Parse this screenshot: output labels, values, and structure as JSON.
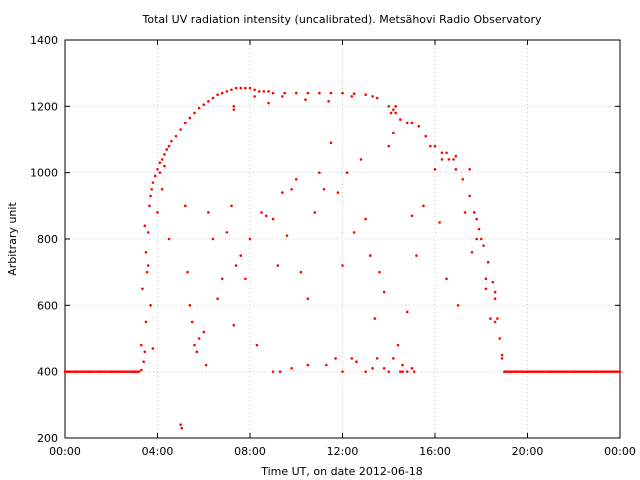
{
  "chart_data": {
    "type": "scatter",
    "title": "Total UV radiation intensity (uncalibrated). Metsähovi Radio Observatory",
    "xlabel": "Time UT, on date 2012-06-18",
    "ylabel": "Arbitrary unit",
    "xlim": [
      "00:00",
      "24:00"
    ],
    "ylim": [
      200,
      1400
    ],
    "x_unit": "hours UT",
    "x_ticks": [
      "00:00",
      "04:00",
      "08:00",
      "12:00",
      "16:00",
      "20:00",
      "00:00"
    ],
    "y_ticks": [
      "200",
      "400",
      "600",
      "800",
      "1000",
      "1200",
      "1400"
    ],
    "grid": true,
    "legend": "none",
    "color": "#ff0000",
    "series": [
      {
        "x": [
          0.0,
          0.5,
          1.0,
          1.5,
          2.0,
          2.5,
          3.0,
          3.2,
          3.3,
          3.4,
          3.45,
          3.5,
          3.55,
          3.6,
          3.65,
          3.7,
          3.75,
          3.8,
          3.9,
          4.0,
          4.1,
          4.2,
          4.3,
          4.4,
          4.5,
          4.6,
          4.8,
          5.0,
          5.2,
          5.4,
          5.6,
          5.8,
          6.0,
          6.2,
          6.4,
          6.6,
          6.8,
          7.0,
          7.2,
          7.4,
          7.6,
          7.8,
          8.0,
          8.2,
          8.4,
          8.6,
          8.8,
          9.0,
          9.5,
          10.0,
          10.5,
          11.0,
          11.5,
          12.0,
          12.5,
          13.0,
          13.5,
          14.0,
          14.3,
          14.5,
          14.8,
          15.0,
          15.3,
          15.6,
          16.0,
          16.3,
          16.6,
          16.9,
          17.2,
          17.5,
          17.7,
          17.9,
          18.1,
          18.3,
          18.5,
          18.6,
          18.7,
          18.8,
          18.9,
          19.0,
          19.5,
          20.0,
          21.0,
          22.0,
          23.0,
          24.0,
          3.3,
          3.35,
          3.45,
          3.5,
          3.6,
          3.7,
          3.8,
          4.0,
          4.1,
          4.2,
          4.3,
          4.5,
          5.0,
          5.05,
          5.2,
          5.3,
          5.4,
          5.5,
          5.6,
          5.7,
          5.8,
          6.0,
          6.1,
          6.2,
          6.4,
          6.6,
          6.8,
          7.0,
          7.2,
          7.3,
          7.4,
          7.6,
          7.8,
          8.0,
          8.3,
          8.5,
          8.7,
          9.0,
          9.2,
          9.4,
          9.6,
          9.8,
          10.0,
          10.2,
          10.5,
          10.8,
          11.0,
          11.2,
          11.5,
          11.8,
          12.0,
          12.2,
          12.5,
          12.8,
          13.0,
          13.2,
          13.4,
          13.6,
          13.8,
          14.0,
          14.2,
          14.4,
          14.6,
          14.8,
          15.0,
          15.2,
          15.5,
          15.8,
          16.0,
          16.2,
          16.5,
          16.8,
          17.0,
          17.3,
          17.6,
          17.8,
          18.0,
          18.2,
          18.4,
          18.6,
          7.3,
          7.3,
          8.2,
          8.8,
          9.4,
          10.4,
          11.4,
          12.4,
          13.3,
          14.1,
          14.2,
          14.3,
          16.3,
          16.5,
          16.9,
          17.5,
          17.8,
          18.2,
          18.6,
          18.9,
          9.0,
          9.3,
          9.8,
          10.5,
          11.3,
          11.7,
          12.0,
          12.4,
          12.6,
          13.0,
          13.3,
          13.5,
          13.8,
          14.0,
          14.2,
          14.5,
          14.6,
          14.8,
          15.0,
          15.1
        ],
        "y": [
          400,
          400,
          400,
          400,
          400,
          400,
          400,
          400,
          405,
          430,
          460,
          550,
          700,
          820,
          900,
          930,
          950,
          970,
          990,
          1010,
          1030,
          1040,
          1055,
          1070,
          1080,
          1095,
          1110,
          1130,
          1150,
          1165,
          1180,
          1195,
          1205,
          1215,
          1225,
          1235,
          1240,
          1245,
          1250,
          1255,
          1255,
          1255,
          1255,
          1250,
          1245,
          1245,
          1245,
          1240,
          1240,
          1240,
          1240,
          1240,
          1240,
          1240,
          1238,
          1235,
          1225,
          1200,
          1180,
          1160,
          1150,
          1150,
          1140,
          1110,
          1080,
          1060,
          1040,
          1010,
          980,
          930,
          880,
          830,
          780,
          730,
          670,
          620,
          560,
          500,
          440,
          400,
          400,
          400,
          400,
          400,
          400,
          400,
          480,
          650,
          840,
          760,
          720,
          600,
          470,
          880,
          1000,
          950,
          1020,
          800,
          240,
          230,
          900,
          700,
          600,
          550,
          480,
          460,
          500,
          520,
          420,
          880,
          800,
          620,
          680,
          820,
          900,
          540,
          720,
          750,
          680,
          800,
          480,
          880,
          870,
          860,
          720,
          940,
          810,
          950,
          980,
          700,
          620,
          880,
          1000,
          950,
          1090,
          940,
          720,
          1000,
          820,
          1040,
          860,
          750,
          560,
          700,
          640,
          1080,
          1120,
          480,
          420,
          580,
          870,
          750,
          900,
          1080,
          1010,
          850,
          680,
          1040,
          600,
          880,
          760,
          860,
          800,
          650,
          560,
          640,
          1190,
          1200,
          1230,
          1210,
          1230,
          1220,
          1215,
          1230,
          1230,
          1180,
          1190,
          1200,
          1040,
          1060,
          1050,
          1010,
          800,
          680,
          550,
          450,
          400,
          400,
          410,
          420,
          420,
          440,
          400,
          440,
          430,
          400,
          410,
          440,
          410,
          400,
          440,
          400,
          400,
          400,
          410,
          400
        ]
      }
    ]
  }
}
